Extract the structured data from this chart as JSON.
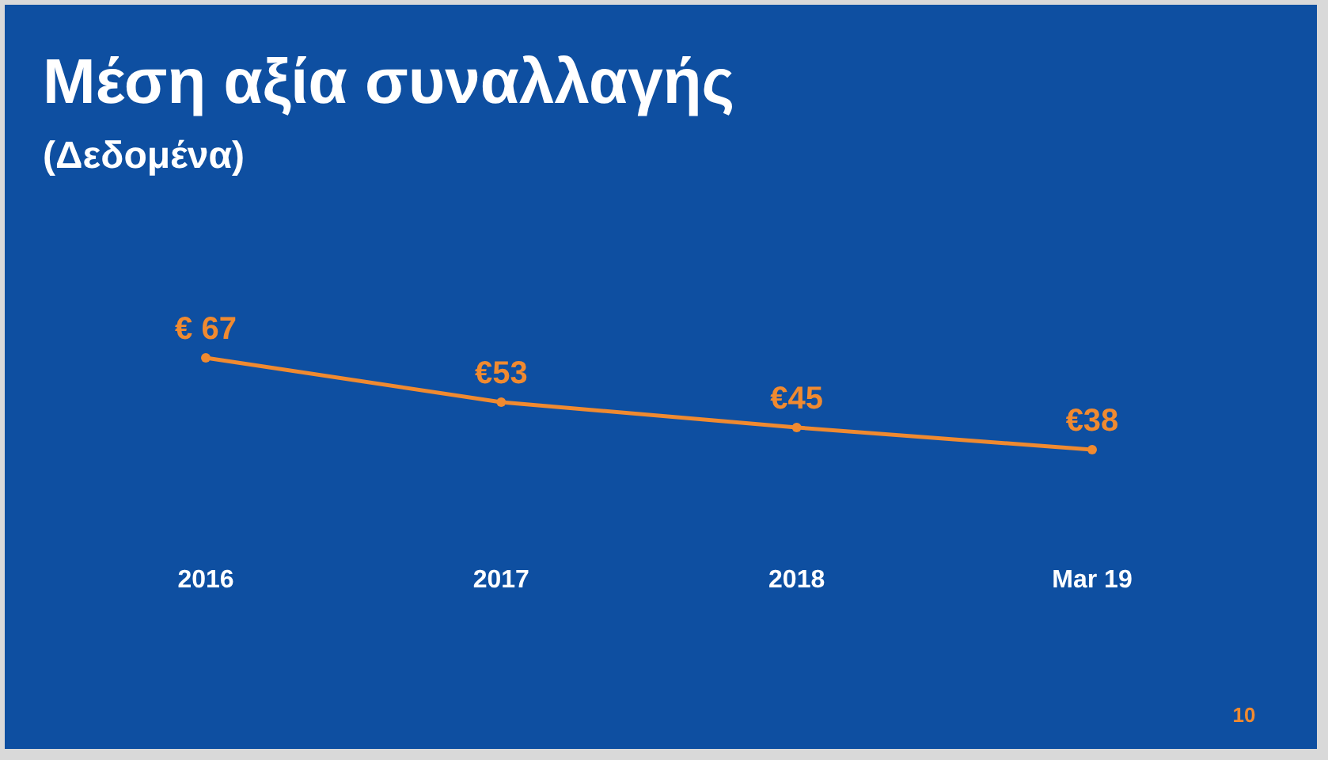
{
  "chart_data": {
    "type": "line",
    "title": "Μέση αξία συναλλαγής",
    "subtitle": "(Δεδομένα)",
    "categories": [
      "2016",
      "2017",
      "2018",
      "Mar  19"
    ],
    "series": [
      {
        "color": "#f08a30",
        "values": [
          67,
          53,
          45,
          38
        ],
        "value_labels": [
          "€ 67",
          "€53",
          "€45",
          "€38"
        ]
      }
    ],
    "marker": "circle",
    "annotations": [
      "10"
    ]
  }
}
